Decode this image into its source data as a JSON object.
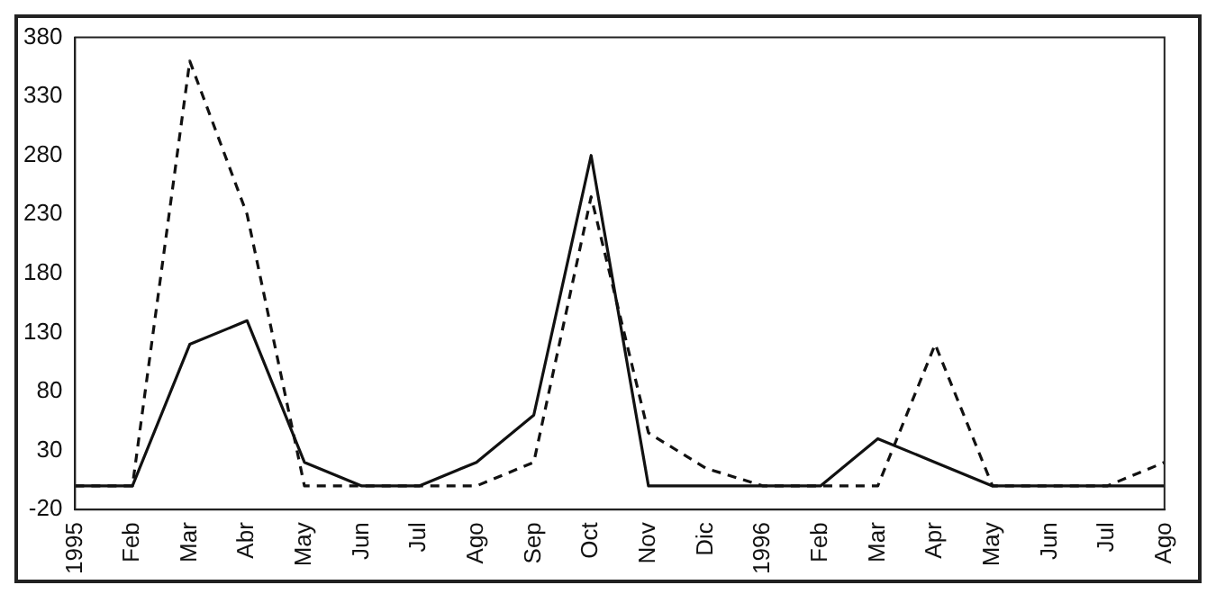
{
  "chart_data": {
    "type": "line",
    "categories": [
      "1995",
      "Feb",
      "Mar",
      "Abr",
      "May",
      "Jun",
      "Jul",
      "Ago",
      "Sep",
      "Oct",
      "Nov",
      "Dic",
      "1996",
      "Feb",
      "Mar",
      "Apr",
      "May",
      "Jun",
      "Jul",
      "Ago"
    ],
    "series": [
      {
        "color": "#111111",
        "line_style": "solid",
        "values": [
          0,
          0,
          120,
          140,
          20,
          0,
          0,
          20,
          60,
          280,
          0,
          0,
          0,
          0,
          40,
          20,
          0,
          0,
          0,
          0
        ]
      },
      {
        "color": "#111111",
        "line_style": "dashed",
        "values": [
          0,
          0,
          360,
          230,
          0,
          0,
          0,
          0,
          20,
          245,
          45,
          15,
          0,
          0,
          0,
          120,
          0,
          0,
          0,
          20
        ]
      }
    ],
    "ylim": [
      -20,
      380
    ],
    "yticks": [
      -20,
      30,
      80,
      130,
      180,
      230,
      280,
      330,
      380
    ],
    "grid": false,
    "legend": false,
    "marker": "none"
  }
}
